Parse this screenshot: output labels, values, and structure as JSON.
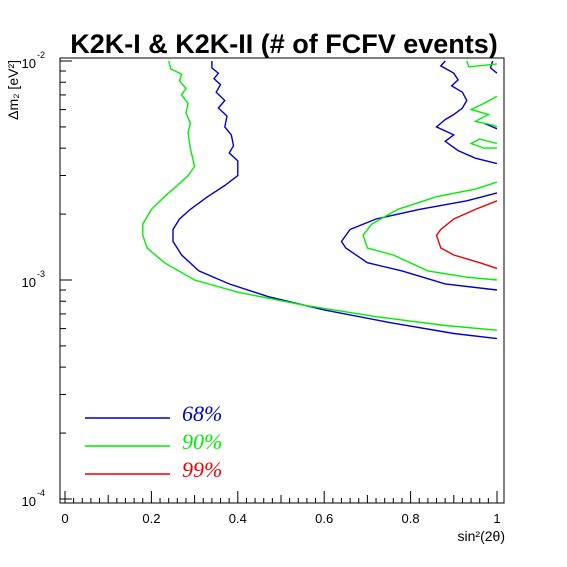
{
  "chart_data": {
    "type": "line",
    "title": "K2K-I & K2K-II (# of FCFV events)",
    "xlabel": "sin²(2θ)",
    "ylabel": "Δm₂ [eV²]",
    "x_scale": "linear",
    "y_scale": "log",
    "xlim": [
      0,
      1
    ],
    "ylim": [
      0.0001,
      0.01
    ],
    "grid": false,
    "legend_position": "bottom-left",
    "x_ticks": [
      "0",
      "0.2",
      "0.4",
      "0.6",
      "0.8",
      "1"
    ],
    "y_ticks": [
      {
        "base": "10",
        "exp": "-4",
        "value": 0.0001
      },
      {
        "base": "10",
        "exp": "-3",
        "value": 0.001
      },
      {
        "base": "10",
        "exp": "-2",
        "value": 0.01
      }
    ],
    "series": [
      {
        "name": "68%",
        "color": "#0000cc",
        "segments": [
          [
            [
              0.34,
              0.01
            ],
            [
              0.34,
              0.0093
            ],
            [
              0.355,
              0.0088
            ],
            [
              0.345,
              0.0083
            ],
            [
              0.36,
              0.0078
            ],
            [
              0.35,
              0.0072
            ],
            [
              0.37,
              0.0066
            ],
            [
              0.355,
              0.0061
            ],
            [
              0.375,
              0.0056
            ],
            [
              0.37,
              0.005
            ],
            [
              0.385,
              0.0046
            ],
            [
              0.39,
              0.0041
            ],
            [
              0.38,
              0.0038
            ],
            [
              0.4,
              0.0035
            ],
            [
              0.4,
              0.003
            ],
            [
              0.37,
              0.0027
            ],
            [
              0.33,
              0.0024
            ],
            [
              0.29,
              0.0021
            ],
            [
              0.265,
              0.0019
            ],
            [
              0.25,
              0.0017
            ],
            [
              0.25,
              0.0015
            ],
            [
              0.27,
              0.0013
            ],
            [
              0.31,
              0.0011
            ],
            [
              0.38,
              0.00096
            ],
            [
              0.47,
              0.00084
            ],
            [
              0.6,
              0.00073
            ],
            [
              0.75,
              0.00064
            ],
            [
              0.9,
              0.00057
            ],
            [
              1.0,
              0.00054
            ]
          ],
          [
            [
              0.88,
              0.01
            ],
            [
              0.87,
              0.0095
            ],
            [
              0.9,
              0.0088
            ],
            [
              0.91,
              0.0082
            ],
            [
              0.895,
              0.0077
            ],
            [
              0.92,
              0.0072
            ],
            [
              0.93,
              0.0066
            ],
            [
              0.92,
              0.0061
            ],
            [
              0.9,
              0.0057
            ],
            [
              0.88,
              0.0054
            ],
            [
              0.86,
              0.005
            ],
            [
              0.9,
              0.0046
            ],
            [
              0.88,
              0.0043
            ],
            [
              0.91,
              0.0039
            ],
            [
              0.95,
              0.0036
            ],
            [
              1.0,
              0.0034
            ]
          ],
          [
            [
              0.99,
              0.01
            ],
            [
              0.985,
              0.0093
            ],
            [
              1.0,
              0.0088
            ]
          ],
          [
            [
              0.97,
              0.0052
            ],
            [
              1.0,
              0.0049
            ]
          ],
          [
            [
              1.0,
              0.0025
            ],
            [
              0.93,
              0.0023
            ],
            [
              0.82,
              0.0021
            ],
            [
              0.72,
              0.0019
            ],
            [
              0.66,
              0.0017
            ],
            [
              0.64,
              0.0015
            ],
            [
              0.65,
              0.0014
            ],
            [
              0.7,
              0.0012
            ],
            [
              0.78,
              0.0011
            ],
            [
              0.88,
              0.00096
            ],
            [
              1.0,
              0.0009
            ]
          ]
        ]
      },
      {
        "name": "90%",
        "color": "#00ee00",
        "segments": [
          [
            [
              0.24,
              0.01
            ],
            [
              0.245,
              0.0092
            ],
            [
              0.27,
              0.0087
            ],
            [
              0.265,
              0.0081
            ],
            [
              0.28,
              0.0075
            ],
            [
              0.27,
              0.007
            ],
            [
              0.285,
              0.0064
            ],
            [
              0.28,
              0.0058
            ],
            [
              0.29,
              0.0052
            ],
            [
              0.285,
              0.0047
            ],
            [
              0.29,
              0.004
            ],
            [
              0.3,
              0.0033
            ],
            [
              0.285,
              0.003
            ],
            [
              0.26,
              0.0027
            ],
            [
              0.23,
              0.0024
            ],
            [
              0.2,
              0.0021
            ],
            [
              0.18,
              0.0018
            ],
            [
              0.18,
              0.0016
            ],
            [
              0.19,
              0.0014
            ],
            [
              0.23,
              0.0012
            ],
            [
              0.3,
              0.001
            ],
            [
              0.4,
              0.00088
            ],
            [
              0.55,
              0.00077
            ],
            [
              0.72,
              0.00068
            ],
            [
              0.88,
              0.00062
            ],
            [
              1.0,
              0.00059
            ]
          ],
          [
            [
              0.93,
              0.01
            ],
            [
              0.935,
              0.0094
            ],
            [
              1.0,
              0.0097
            ]
          ],
          [
            [
              1.0,
              0.0069
            ],
            [
              0.97,
              0.0064
            ],
            [
              0.94,
              0.006
            ],
            [
              0.98,
              0.0057
            ],
            [
              0.95,
              0.0053
            ],
            [
              0.99,
              0.0051
            ],
            [
              1.0,
              0.005
            ]
          ],
          [
            [
              1.0,
              0.0042
            ],
            [
              0.96,
              0.0044
            ],
            [
              0.94,
              0.0042
            ],
            [
              0.97,
              0.004
            ],
            [
              1.0,
              0.004
            ]
          ],
          [
            [
              1.0,
              0.0028
            ],
            [
              0.95,
              0.0026
            ],
            [
              0.86,
              0.0024
            ],
            [
              0.77,
              0.0021
            ],
            [
              0.71,
              0.0018
            ],
            [
              0.69,
              0.0016
            ],
            [
              0.7,
              0.0014
            ],
            [
              0.76,
              0.0013
            ],
            [
              0.84,
              0.0011
            ],
            [
              0.93,
              0.00103
            ],
            [
              1.0,
              0.001
            ]
          ]
        ]
      },
      {
        "name": "99%",
        "color": "#ee0000",
        "segments": [
          [
            [
              1.0,
              0.0023
            ],
            [
              0.95,
              0.0021
            ],
            [
              0.9,
              0.0019
            ],
            [
              0.87,
              0.0017
            ],
            [
              0.86,
              0.0016
            ],
            [
              0.87,
              0.0014
            ],
            [
              0.9,
              0.0013
            ],
            [
              0.96,
              0.0012
            ],
            [
              1.0,
              0.00113
            ]
          ]
        ]
      }
    ]
  }
}
